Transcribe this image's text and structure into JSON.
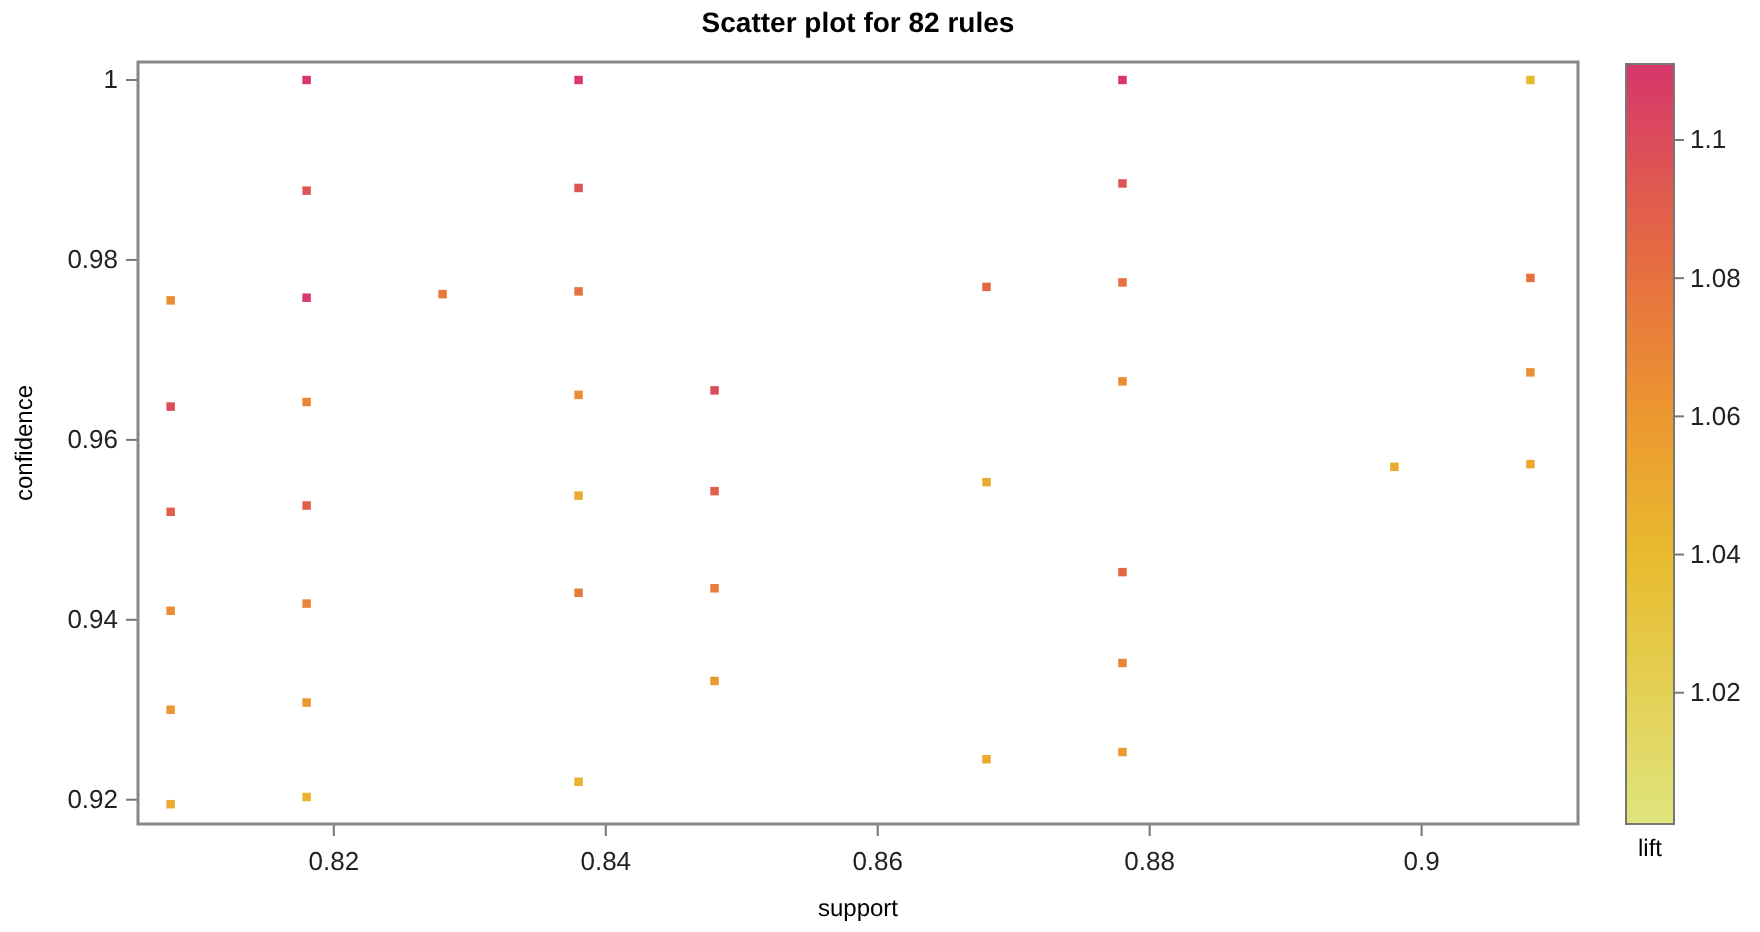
{
  "chart_data": {
    "type": "scatter",
    "title": "Scatter plot for 82 rules",
    "xlabel": "support",
    "ylabel": "confidence",
    "clabel": "lift",
    "x": [
      0.808,
      0.808,
      0.808,
      0.808,
      0.808,
      0.808,
      0.818,
      0.818,
      0.818,
      0.818,
      0.818,
      0.818,
      0.818,
      0.818,
      0.828,
      0.838,
      0.838,
      0.838,
      0.838,
      0.838,
      0.838,
      0.838,
      0.848,
      0.848,
      0.848,
      0.848,
      0.868,
      0.868,
      0.868,
      0.878,
      0.878,
      0.878,
      0.878,
      0.878,
      0.878,
      0.878,
      0.898,
      0.908,
      0.908,
      0.908,
      0.908
    ],
    "values": [
      0.9755,
      0.9637,
      0.952,
      0.941,
      0.93,
      0.9195,
      1,
      0.9877,
      0.9758,
      0.9642,
      0.9527,
      0.9418,
      0.9308,
      0.9203,
      0.9762,
      1,
      0.988,
      0.9765,
      0.965,
      0.9538,
      0.943,
      0.922,
      0.9655,
      0.9543,
      0.9435,
      0.9332,
      0.977,
      0.9553,
      0.9245,
      1,
      0.9885,
      0.9775,
      0.9665,
      0.9453,
      0.9352,
      0.9253,
      0.957,
      1,
      0.978,
      0.9675,
      0.9573
    ],
    "cvalues": [
      1.065,
      1.1,
      1.09,
      1.065,
      1.06,
      1.05,
      1.11,
      1.095,
      1.11,
      1.07,
      1.09,
      1.07,
      1.06,
      1.045,
      1.075,
      1.11,
      1.095,
      1.08,
      1.065,
      1.05,
      1.075,
      1.045,
      1.1,
      1.09,
      1.075,
      1.06,
      1.085,
      1.05,
      1.05,
      1.11,
      1.095,
      1.08,
      1.065,
      1.085,
      1.07,
      1.06,
      1.05,
      1.04,
      1.08,
      1.065,
      1.05
    ],
    "xlim": [
      0.8056,
      0.9115
    ],
    "xticks": [
      0.82,
      0.84,
      0.86,
      0.88,
      0.9
    ],
    "ylim": [
      0.9173,
      1.002
    ],
    "yticks": [
      0.92,
      0.94,
      0.96,
      0.98,
      1
    ],
    "clim": [
      1.001,
      1.111
    ],
    "cticks": [
      1.02,
      1.04,
      1.06,
      1.08,
      1.1
    ],
    "marker": "square",
    "grid": false
  }
}
